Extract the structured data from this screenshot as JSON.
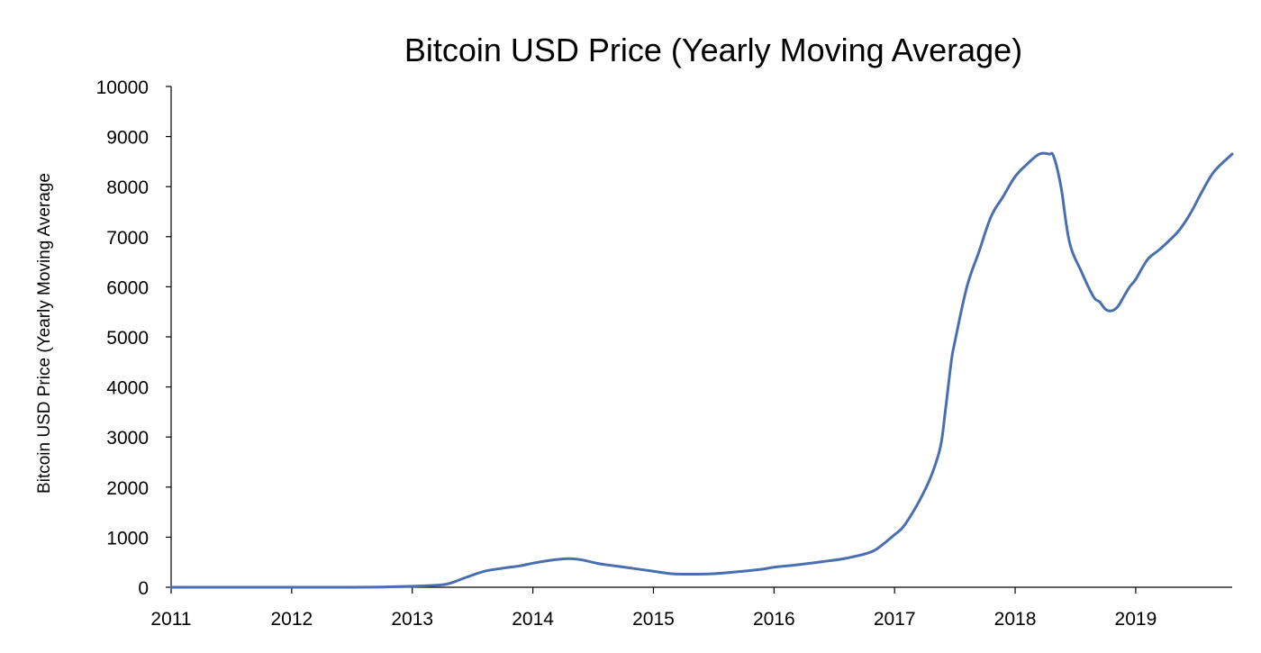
{
  "chart_data": {
    "type": "line",
    "title": "Bitcoin USD Price (Yearly Moving Average)",
    "xlabel": "",
    "ylabel": "Bitcoin USD Price (Yearly Moving Average",
    "xlim": [
      2011,
      2019.8
    ],
    "ylim": [
      0,
      10000
    ],
    "xticks": [
      2011,
      2012,
      2013,
      2014,
      2015,
      2016,
      2017,
      2018,
      2019
    ],
    "xtick_labels": [
      "2011",
      "2012",
      "2013",
      "2014",
      "2015",
      "2016",
      "2017",
      "2018",
      "2019"
    ],
    "yticks": [
      0,
      1000,
      2000,
      3000,
      4000,
      5000,
      6000,
      7000,
      8000,
      9000,
      10000
    ],
    "ytick_labels": [
      "0",
      "1000",
      "2000",
      "3000",
      "4000",
      "5000",
      "6000",
      "7000",
      "8000",
      "9000",
      "10000"
    ],
    "grid": false,
    "legend": "none",
    "series": [
      {
        "color": "#4a6fb0",
        "x": [
          2011.0,
          2011.5,
          2012.0,
          2012.5,
          2012.75,
          2013.0,
          2013.2,
          2013.3,
          2013.45,
          2013.6,
          2013.75,
          2013.9,
          2014.0,
          2014.15,
          2014.3,
          2014.4,
          2014.55,
          2014.7,
          2014.85,
          2015.0,
          2015.15,
          2015.3,
          2015.5,
          2015.7,
          2015.9,
          2016.0,
          2016.2,
          2016.4,
          2016.6,
          2016.8,
          2016.9,
          2017.0,
          2017.05,
          2017.1,
          2017.2,
          2017.3,
          2017.38,
          2017.42,
          2017.47,
          2017.5,
          2017.6,
          2017.7,
          2017.8,
          2017.9,
          2018.0,
          2018.1,
          2018.2,
          2018.28,
          2018.32,
          2018.38,
          2018.45,
          2018.55,
          2018.65,
          2018.7,
          2018.75,
          2018.8,
          2018.85,
          2018.9,
          2018.95,
          2019.0,
          2019.1,
          2019.2,
          2019.35,
          2019.45,
          2019.55,
          2019.65,
          2019.8
        ],
        "y": [
          0,
          0,
          0,
          0,
          5,
          20,
          40,
          70,
          200,
          320,
          380,
          430,
          480,
          540,
          570,
          550,
          470,
          420,
          370,
          320,
          270,
          260,
          270,
          310,
          360,
          400,
          450,
          510,
          580,
          700,
          850,
          1050,
          1150,
          1300,
          1700,
          2200,
          2800,
          3500,
          4500,
          4900,
          6000,
          6700,
          7400,
          7800,
          8200,
          8450,
          8650,
          8650,
          8600,
          8000,
          6900,
          6300,
          5800,
          5700,
          5550,
          5520,
          5600,
          5800,
          6000,
          6150,
          6550,
          6750,
          7100,
          7450,
          7900,
          8300,
          8650
        ]
      }
    ]
  }
}
